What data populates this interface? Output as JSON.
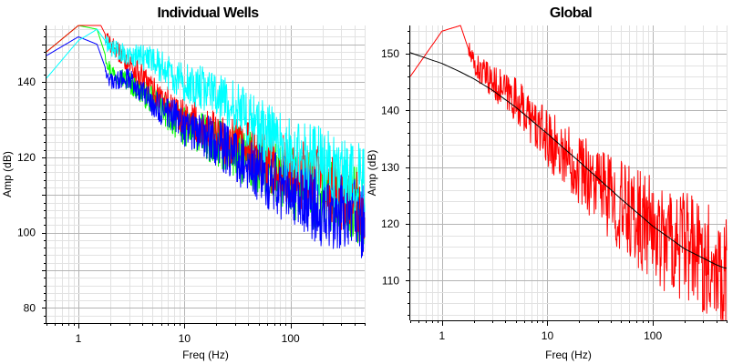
{
  "chart_data": [
    {
      "type": "line",
      "title": "Individual Wells",
      "xlabel": "Freq (Hz)",
      "ylabel": "Amp (dB)",
      "x_scale": "log",
      "xlim": [
        0.5,
        500
      ],
      "ylim": [
        76,
        155
      ],
      "x_ticks": [
        "1",
        "10",
        "100"
      ],
      "y_ticks": [
        "80",
        "100",
        "120",
        "140"
      ],
      "grid": true,
      "series": [
        {
          "color": "#00ff00",
          "x": [
            0.5,
            1,
            1.5,
            2,
            3,
            5,
            8,
            10,
            20,
            50,
            100,
            200,
            400,
            480
          ],
          "y": [
            148,
            155,
            154,
            143,
            140,
            135,
            130,
            128,
            124,
            118,
            113,
            110,
            108,
            106
          ]
        },
        {
          "color": "#ff0000",
          "x": [
            0.5,
            1,
            1.5,
            2,
            3,
            5,
            8,
            10,
            20,
            50,
            100,
            200,
            400,
            480
          ],
          "y": [
            148,
            155,
            157,
            150,
            145,
            138,
            133,
            131,
            126,
            120,
            116,
            113,
            108,
            104
          ]
        },
        {
          "color": "#0000ff",
          "x": [
            0.5,
            1,
            1.5,
            2,
            3,
            5,
            8,
            10,
            20,
            50,
            100,
            200,
            400,
            480
          ],
          "y": [
            147,
            152,
            150,
            140,
            141,
            134,
            131,
            128,
            124,
            116,
            111,
            106,
            105,
            103
          ]
        },
        {
          "color": "#00ffff",
          "x": [
            0.5,
            1,
            1.5,
            2,
            3,
            5,
            8,
            10,
            20,
            50,
            100,
            200,
            400,
            480
          ],
          "y": [
            141,
            151,
            154,
            149,
            147,
            146,
            141,
            140,
            137,
            128,
            122,
            118,
            114,
            114
          ]
        }
      ]
    },
    {
      "type": "line",
      "title": "Global",
      "xlabel": "Freq (Hz)",
      "ylabel": "Amp (dB)",
      "x_scale": "log",
      "xlim": [
        0.5,
        500
      ],
      "ylim": [
        103,
        155
      ],
      "x_ticks": [
        "1",
        "10",
        "100"
      ],
      "y_ticks": [
        "110",
        "120",
        "130",
        "140",
        "150"
      ],
      "grid": true,
      "series": [
        {
          "color": "#ff0000",
          "x": [
            0.5,
            1,
            1.5,
            2,
            3,
            5,
            8,
            10,
            20,
            50,
            100,
            200,
            400,
            480
          ],
          "y": [
            146,
            154,
            155,
            148,
            145,
            142,
            137,
            135,
            130,
            123,
            119,
            116,
            113,
            112
          ]
        },
        {
          "color": "#000000",
          "x": [
            0.5,
            1,
            1.5,
            2,
            3,
            5,
            8,
            10,
            20,
            50,
            100,
            200,
            400,
            480
          ],
          "y": [
            150.2,
            148.3,
            146.8,
            145.6,
            143.6,
            140.6,
            137.4,
            135.9,
            131.0,
            124.4,
            119.6,
            115.6,
            112.8,
            112.2
          ]
        }
      ]
    }
  ]
}
